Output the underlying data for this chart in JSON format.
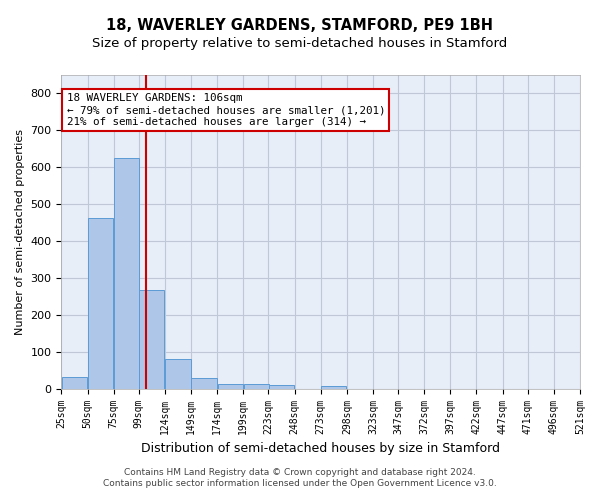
{
  "title": "18, WAVERLEY GARDENS, STAMFORD, PE9 1BH",
  "subtitle": "Size of property relative to semi-detached houses in Stamford",
  "xlabel": "Distribution of semi-detached houses by size in Stamford",
  "ylabel": "Number of semi-detached properties",
  "footer_line1": "Contains HM Land Registry data © Crown copyright and database right 2024.",
  "footer_line2": "Contains public sector information licensed under the Open Government Licence v3.0.",
  "annotation_title": "18 WAVERLEY GARDENS: 106sqm",
  "annotation_line2": "← 79% of semi-detached houses are smaller (1,201)",
  "annotation_line3": "21% of semi-detached houses are larger (314) →",
  "property_size": 106,
  "bar_left_edges": [
    25,
    50,
    75,
    99,
    124,
    149,
    174,
    199,
    223,
    248,
    273,
    298,
    323,
    347,
    372,
    397,
    422,
    447,
    471,
    496
  ],
  "bar_widths": [
    25,
    25,
    25,
    25,
    25,
    25,
    25,
    25,
    25,
    25,
    25,
    25,
    24,
    25,
    25,
    25,
    25,
    25,
    25,
    25
  ],
  "bar_heights": [
    33,
    462,
    625,
    267,
    80,
    30,
    13,
    12,
    10,
    0,
    7,
    0,
    0,
    0,
    0,
    0,
    0,
    0,
    0,
    0
  ],
  "bar_color": "#aec6e8",
  "bar_edge_color": "#5b9bd5",
  "vline_color": "#cc0000",
  "vline_x": 106,
  "ylim": [
    0,
    850
  ],
  "yticks": [
    0,
    100,
    200,
    300,
    400,
    500,
    600,
    700,
    800
  ],
  "xlim": [
    25,
    521
  ],
  "xtick_labels": [
    "25sqm",
    "50sqm",
    "75sqm",
    "99sqm",
    "124sqm",
    "149sqm",
    "174sqm",
    "199sqm",
    "223sqm",
    "248sqm",
    "273sqm",
    "298sqm",
    "323sqm",
    "347sqm",
    "372sqm",
    "397sqm",
    "422sqm",
    "447sqm",
    "471sqm",
    "496sqm",
    "521sqm"
  ],
  "xtick_positions": [
    25,
    50,
    75,
    99,
    124,
    149,
    174,
    199,
    223,
    248,
    273,
    298,
    323,
    347,
    372,
    397,
    422,
    447,
    471,
    496,
    521
  ],
  "grid_color": "#c0c8d8",
  "bg_color": "#e8eef8",
  "title_fontsize": 10.5,
  "subtitle_fontsize": 9.5
}
